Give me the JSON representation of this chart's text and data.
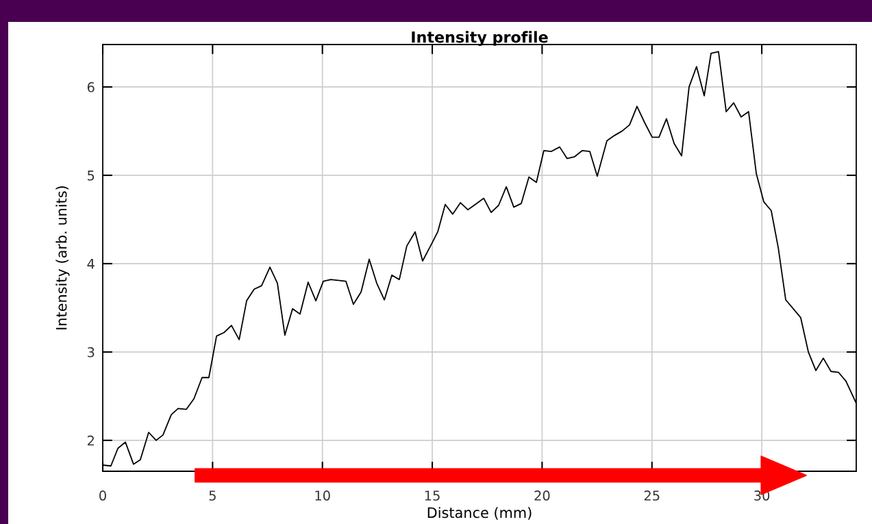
{
  "chart_data": {
    "type": "line",
    "title": "Intensity profile",
    "xlabel": "Distance (mm)",
    "ylabel": "Intensity (arb. units)",
    "x": [
      0.0,
      0.37,
      0.69,
      1.03,
      1.4,
      1.71,
      2.09,
      2.43,
      2.74,
      3.12,
      3.43,
      3.8,
      4.15,
      4.52,
      4.83,
      5.18,
      5.52,
      5.86,
      6.21,
      6.55,
      6.89,
      7.23,
      7.61,
      7.95,
      8.29,
      8.64,
      8.98,
      9.35,
      9.7,
      10.04,
      10.38,
      10.73,
      11.07,
      11.41,
      11.76,
      12.13,
      12.47,
      12.82,
      13.16,
      13.5,
      13.84,
      14.22,
      14.56,
      14.9,
      15.25,
      15.59,
      15.93,
      16.28,
      16.62,
      16.96,
      17.34,
      17.68,
      18.02,
      18.37,
      18.71,
      19.05,
      19.4,
      19.74,
      20.08,
      20.42,
      20.8,
      21.14,
      21.48,
      21.83,
      22.17,
      22.51,
      22.95,
      23.29,
      23.64,
      23.98,
      24.32,
      24.66,
      25.01,
      25.32,
      25.66,
      26.01,
      26.35,
      26.69,
      27.03,
      27.38,
      27.69,
      28.03,
      28.38,
      28.72,
      29.06,
      29.4,
      29.75,
      30.09,
      30.43,
      30.75,
      31.09,
      31.43,
      31.77,
      32.12,
      32.46,
      32.8,
      33.15,
      33.49,
      33.83,
      34.3
    ],
    "series": [
      {
        "color": "#000000",
        "values": [
          1.72,
          1.71,
          1.91,
          1.98,
          1.73,
          1.78,
          2.09,
          2.0,
          2.06,
          2.29,
          2.36,
          2.35,
          2.47,
          2.71,
          2.71,
          3.18,
          3.22,
          3.3,
          3.14,
          3.58,
          3.71,
          3.75,
          3.96,
          3.78,
          3.19,
          3.49,
          3.43,
          3.79,
          3.58,
          3.8,
          3.82,
          3.81,
          3.8,
          3.54,
          3.68,
          4.05,
          3.78,
          3.59,
          3.87,
          3.82,
          4.2,
          4.36,
          4.03,
          4.19,
          4.36,
          4.67,
          4.56,
          4.69,
          4.61,
          4.67,
          4.74,
          4.58,
          4.66,
          4.87,
          4.64,
          4.68,
          4.98,
          4.92,
          5.28,
          5.27,
          5.32,
          5.19,
          5.21,
          5.28,
          5.27,
          4.99,
          5.39,
          5.45,
          5.5,
          5.57,
          5.78,
          5.6,
          5.43,
          5.43,
          5.64,
          5.36,
          5.22,
          6.0,
          6.23,
          5.9,
          6.38,
          6.4,
          5.72,
          5.82,
          5.66,
          5.72,
          5.02,
          4.7,
          4.6,
          4.18,
          3.59,
          3.49,
          3.39,
          3.0,
          2.79,
          2.93,
          2.78,
          2.77,
          2.67,
          2.42
        ]
      }
    ],
    "xlim": [
      0,
      34.3
    ],
    "ylim": [
      1.65,
      6.48
    ],
    "xticks": [
      0,
      5,
      10,
      15,
      20,
      25,
      30
    ],
    "yticks": [
      2,
      3,
      4,
      5,
      6
    ],
    "grid": true,
    "line_style": "solid",
    "marker": "none"
  }
}
